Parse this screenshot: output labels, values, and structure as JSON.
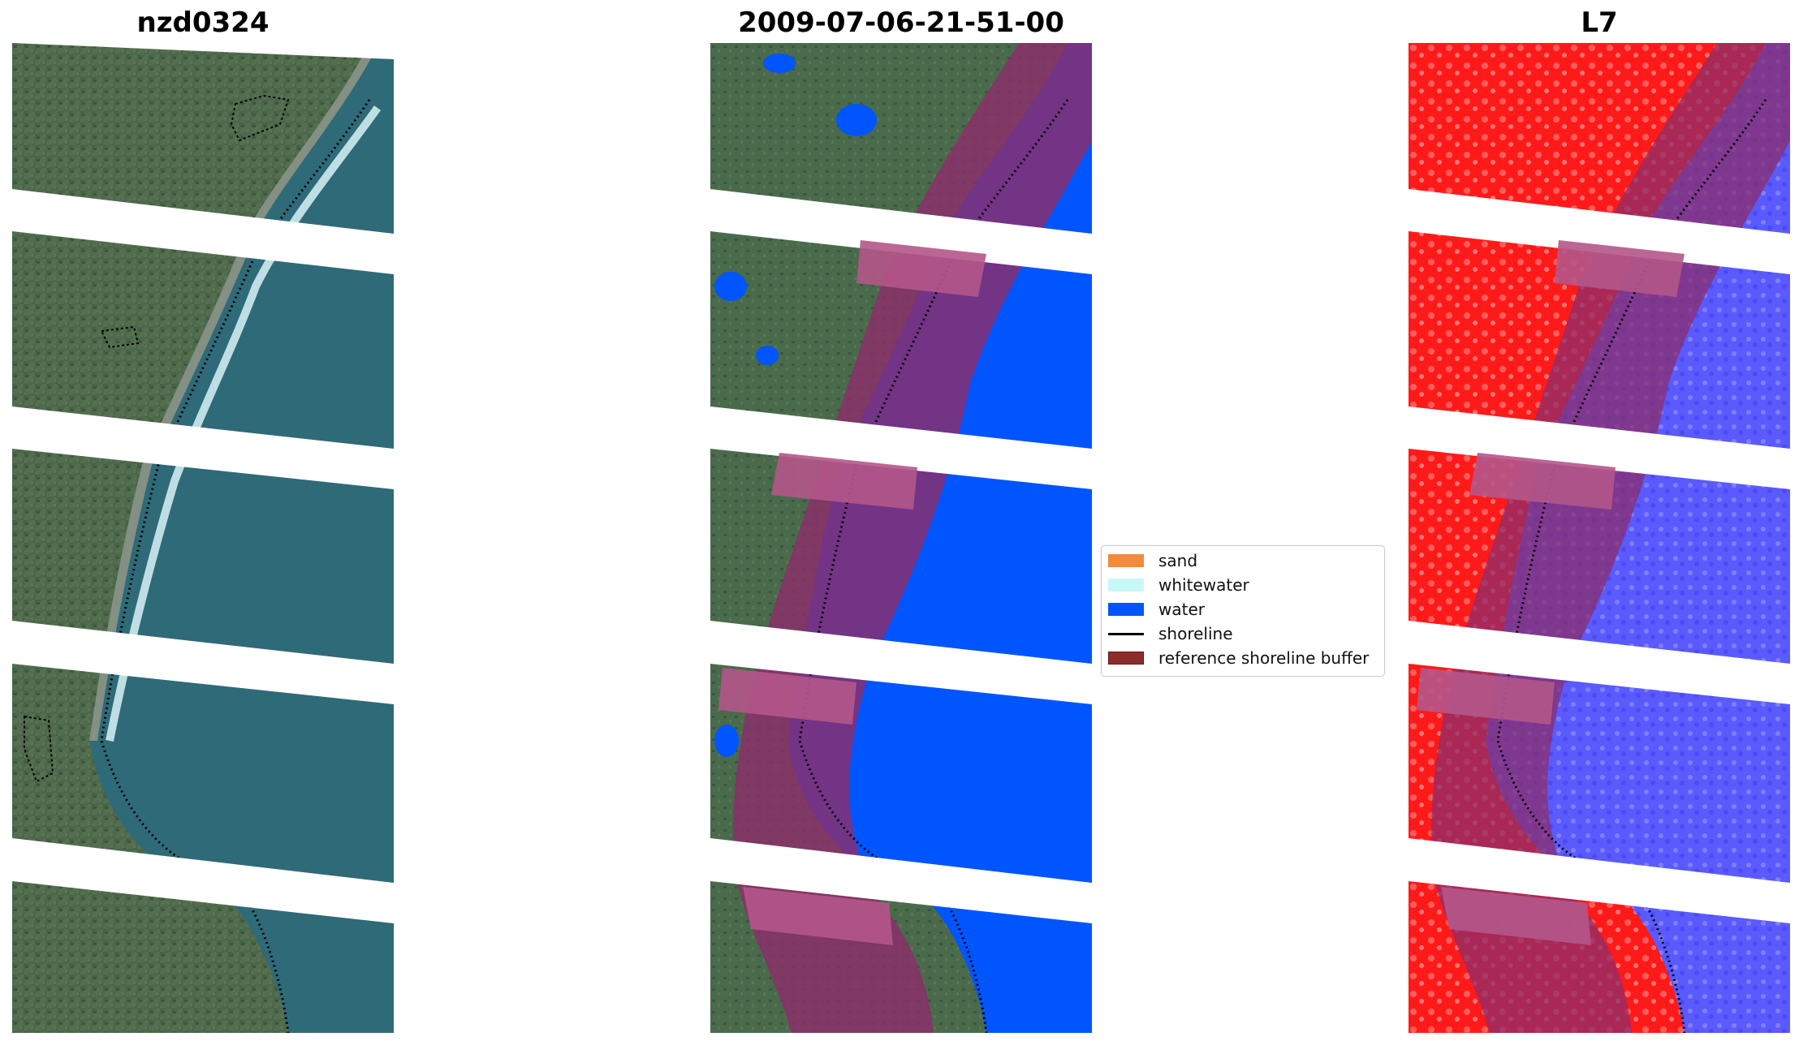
{
  "panels": [
    {
      "title": "nzd0324"
    },
    {
      "title": "2009-07-06-21-51-00"
    },
    {
      "title": "L7"
    }
  ],
  "legend": {
    "items": [
      {
        "label": "sand",
        "color": "#f58a3a",
        "kind": "patch"
      },
      {
        "label": "whitewater",
        "color": "#c8f7f7",
        "kind": "patch"
      },
      {
        "label": "water",
        "color": "#0055ff",
        "kind": "patch"
      },
      {
        "label": "shoreline",
        "color": "#000000",
        "kind": "line"
      },
      {
        "label": "reference shoreline buffer",
        "color": "#8c2d2d",
        "kind": "patch",
        "edge": "#6a1010"
      }
    ]
  },
  "colors": {
    "land": "#4d6b4d",
    "sea_rgb": "#2f6a78",
    "surf": "#d8f2f7",
    "water_class": "#0055ff",
    "buffer": "#a0306b",
    "index_land": "#ff1a1a",
    "index_water": "#5a5aff",
    "gap": "#ffffff"
  }
}
